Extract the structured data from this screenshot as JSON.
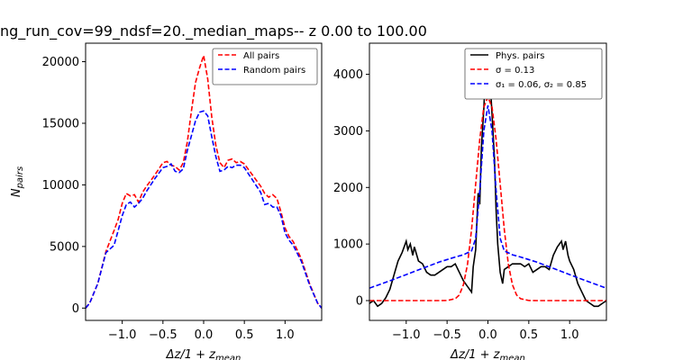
{
  "figure": {
    "title": "ng_run_cov=99_ndsf=20._median_maps-- z 0.00 to 100.00"
  },
  "chart_data": [
    {
      "type": "line",
      "xlabel": "Δz/1 + z_mean",
      "ylabel": "N_pairs",
      "xlim": [
        -1.45,
        1.45
      ],
      "ylim": [
        -1000,
        21500
      ],
      "x_ticks": [
        -1.0,
        -0.5,
        0.0,
        0.5,
        1.0
      ],
      "x_tick_labels": [
        "−1.0",
        "−0.5",
        "0.0",
        "0.5",
        "1.0"
      ],
      "y_ticks": [
        0,
        5000,
        10000,
        15000,
        20000
      ],
      "y_tick_labels": [
        "0",
        "5000",
        "10000",
        "15000",
        "20000"
      ],
      "legend_position": "top-right",
      "series": [
        {
          "name": "All pairs",
          "color": "#ff0000",
          "dash": "dashed",
          "x": [
            -1.45,
            -1.4,
            -1.3,
            -1.2,
            -1.1,
            -1.05,
            -1.0,
            -0.95,
            -0.9,
            -0.85,
            -0.8,
            -0.75,
            -0.7,
            -0.6,
            -0.5,
            -0.45,
            -0.4,
            -0.35,
            -0.3,
            -0.25,
            -0.2,
            -0.15,
            -0.1,
            -0.05,
            0.0,
            0.05,
            0.1,
            0.15,
            0.2,
            0.25,
            0.3,
            0.35,
            0.4,
            0.45,
            0.5,
            0.6,
            0.7,
            0.75,
            0.8,
            0.85,
            0.9,
            0.95,
            1.0,
            1.05,
            1.1,
            1.2,
            1.3,
            1.4,
            1.45
          ],
          "y": [
            0,
            400,
            2000,
            4600,
            6300,
            7200,
            8500,
            9300,
            9100,
            9200,
            8600,
            9400,
            9900,
            10800,
            11800,
            11900,
            11600,
            11500,
            11200,
            11800,
            13500,
            16000,
            18300,
            19500,
            20500,
            18600,
            15500,
            13200,
            11800,
            11400,
            12000,
            12100,
            11800,
            11900,
            11700,
            10800,
            9900,
            9300,
            9000,
            9200,
            8900,
            7800,
            6500,
            5800,
            5400,
            4000,
            2000,
            400,
            0
          ]
        },
        {
          "name": "Random pairs",
          "color": "#0000ff",
          "dash": "dashed",
          "x": [
            -1.45,
            -1.4,
            -1.3,
            -1.2,
            -1.1,
            -1.05,
            -1.0,
            -0.95,
            -0.9,
            -0.85,
            -0.8,
            -0.75,
            -0.7,
            -0.6,
            -0.5,
            -0.45,
            -0.4,
            -0.35,
            -0.3,
            -0.25,
            -0.2,
            -0.15,
            -0.1,
            -0.05,
            0.0,
            0.05,
            0.1,
            0.15,
            0.2,
            0.25,
            0.3,
            0.35,
            0.4,
            0.45,
            0.5,
            0.6,
            0.7,
            0.75,
            0.8,
            0.85,
            0.9,
            0.95,
            1.0,
            1.05,
            1.1,
            1.2,
            1.3,
            1.4,
            1.45
          ],
          "y": [
            0,
            400,
            2000,
            4500,
            5100,
            6300,
            7500,
            8400,
            8600,
            8200,
            8500,
            8900,
            9500,
            10500,
            11400,
            11500,
            11700,
            11100,
            11000,
            11300,
            12800,
            14000,
            15200,
            15900,
            16000,
            15600,
            13900,
            12300,
            11100,
            11200,
            11500,
            11400,
            11600,
            11600,
            11400,
            10400,
            9400,
            8400,
            8500,
            8200,
            8200,
            7500,
            6100,
            5500,
            5100,
            3800,
            1900,
            400,
            0
          ]
        }
      ]
    },
    {
      "type": "line",
      "xlabel": "Δz/1 + z_mean",
      "ylabel": "",
      "xlim": [
        -1.45,
        1.45
      ],
      "ylim": [
        -350,
        4550
      ],
      "x_ticks": [
        -1.0,
        -0.5,
        0.0,
        0.5,
        1.0
      ],
      "x_tick_labels": [
        "−1.0",
        "−0.5",
        "0.0",
        "0.5",
        "1.0"
      ],
      "y_ticks": [
        0,
        1000,
        2000,
        3000,
        4000
      ],
      "y_tick_labels": [
        "0",
        "1000",
        "2000",
        "3000",
        "4000"
      ],
      "legend_position": "top-right",
      "series": [
        {
          "name": "Phys. pairs",
          "legend_label": "Phys. pairs",
          "color": "#000000",
          "dash": "solid",
          "x": [
            -1.45,
            -1.4,
            -1.35,
            -1.3,
            -1.25,
            -1.2,
            -1.15,
            -1.1,
            -1.05,
            -1.0,
            -0.98,
            -0.95,
            -0.92,
            -0.9,
            -0.85,
            -0.8,
            -0.75,
            -0.7,
            -0.65,
            -0.6,
            -0.55,
            -0.5,
            -0.45,
            -0.4,
            -0.35,
            -0.3,
            -0.25,
            -0.2,
            -0.18,
            -0.15,
            -0.12,
            -0.1,
            -0.08,
            -0.05,
            -0.03,
            0.0,
            0.03,
            0.05,
            0.08,
            0.1,
            0.12,
            0.15,
            0.18,
            0.2,
            0.25,
            0.3,
            0.35,
            0.4,
            0.45,
            0.5,
            0.55,
            0.6,
            0.65,
            0.7,
            0.75,
            0.8,
            0.85,
            0.9,
            0.92,
            0.95,
            0.98,
            1.0,
            1.05,
            1.1,
            1.15,
            1.2,
            1.25,
            1.3,
            1.35,
            1.4,
            1.45
          ],
          "y": [
            -50,
            0,
            -100,
            -50,
            50,
            200,
            450,
            700,
            850,
            1050,
            900,
            1000,
            800,
            950,
            700,
            650,
            500,
            450,
            450,
            500,
            550,
            600,
            600,
            650,
            500,
            350,
            250,
            150,
            600,
            900,
            1900,
            1700,
            2700,
            3400,
            4050,
            4300,
            3800,
            3300,
            2500,
            1600,
            1000,
            500,
            300,
            550,
            600,
            650,
            650,
            650,
            600,
            650,
            500,
            550,
            600,
            600,
            550,
            800,
            950,
            1050,
            900,
            1050,
            800,
            700,
            550,
            300,
            150,
            0,
            -50,
            -100,
            -100,
            -50,
            0
          ]
        },
        {
          "name": "sigma single",
          "legend_label": "σ = 0.13",
          "color": "#ff0000",
          "dash": "dashed",
          "x": [
            -1.45,
            -1.2,
            -1.0,
            -0.8,
            -0.6,
            -0.5,
            -0.4,
            -0.35,
            -0.3,
            -0.25,
            -0.2,
            -0.15,
            -0.1,
            -0.05,
            0.0,
            0.05,
            0.1,
            0.15,
            0.2,
            0.25,
            0.3,
            0.35,
            0.4,
            0.5,
            0.6,
            0.8,
            1.0,
            1.2,
            1.45
          ],
          "y": [
            0,
            0,
            0,
            0,
            0,
            2,
            33,
            100,
            280,
            640,
            1260,
            2060,
            2850,
            3420,
            3600,
            3420,
            2850,
            2060,
            1260,
            640,
            280,
            100,
            33,
            2,
            0,
            0,
            0,
            0,
            0
          ]
        },
        {
          "name": "sigma double",
          "legend_label": "σ₁ = 0.06, σ₂ = 0.85",
          "color": "#0000ff",
          "dash": "dashed",
          "x": [
            -1.45,
            -1.2,
            -1.0,
            -0.8,
            -0.6,
            -0.4,
            -0.3,
            -0.2,
            -0.15,
            -0.1,
            -0.05,
            0.0,
            0.05,
            0.1,
            0.15,
            0.2,
            0.3,
            0.4,
            0.6,
            0.8,
            1.0,
            1.2,
            1.45
          ],
          "y": [
            220,
            350,
            460,
            570,
            680,
            770,
            810,
            880,
            1100,
            1950,
            3000,
            3450,
            3000,
            1950,
            1100,
            880,
            810,
            770,
            680,
            570,
            460,
            350,
            220
          ]
        }
      ]
    }
  ]
}
